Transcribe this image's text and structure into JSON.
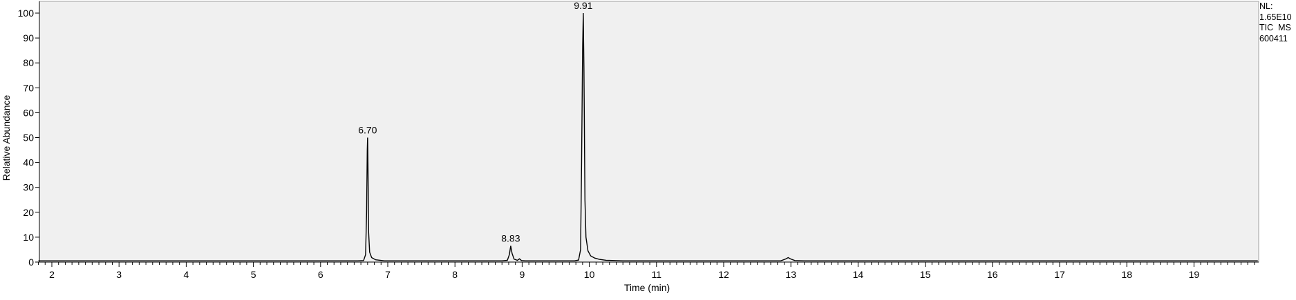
{
  "chart_data": {
    "type": "line",
    "title": "",
    "xlabel": "Time (min)",
    "ylabel": "Relative Abundance",
    "xlim": [
      1.8,
      19.95
    ],
    "ylim": [
      0,
      100
    ],
    "x_ticks": [
      2,
      3,
      4,
      5,
      6,
      7,
      8,
      9,
      10,
      11,
      12,
      13,
      14,
      15,
      16,
      17,
      18,
      19
    ],
    "y_ticks": [
      0,
      10,
      20,
      30,
      40,
      50,
      60,
      70,
      80,
      90,
      100
    ],
    "grid": false,
    "background_color": "#f0f0f0",
    "line_color": "#000000",
    "series": [
      {
        "x": [
          1.8,
          6.55,
          6.64,
          6.67,
          6.685,
          6.695,
          6.7,
          6.705,
          6.715,
          6.73,
          6.76,
          6.82,
          6.95,
          8.7,
          8.78,
          8.81,
          8.83,
          8.85,
          8.88,
          8.93,
          8.96,
          8.99,
          9.05,
          9.78,
          9.84,
          9.87,
          9.885,
          9.9,
          9.91,
          9.92,
          9.935,
          9.95,
          9.98,
          10.02,
          10.08,
          10.15,
          10.25,
          10.5,
          12.85,
          12.92,
          12.96,
          13.0,
          13.06,
          13.2,
          19.95
        ],
        "y": [
          0.5,
          0.5,
          0.6,
          3,
          20,
          45,
          50,
          40,
          12,
          4,
          1.8,
          0.9,
          0.5,
          0.5,
          0.7,
          3,
          6.5,
          3.5,
          1.2,
          0.7,
          1.3,
          0.6,
          0.5,
          0.5,
          0.8,
          5,
          40,
          85,
          100,
          78,
          25,
          10,
          4.5,
          2.5,
          1.6,
          1.1,
          0.7,
          0.5,
          0.5,
          1.2,
          1.8,
          1.2,
          0.6,
          0.5,
          0.5
        ]
      }
    ],
    "peak_labels": [
      {
        "x": 6.7,
        "y": 50,
        "text": "6.70"
      },
      {
        "x": 8.83,
        "y": 6.5,
        "text": "8.83"
      },
      {
        "x": 9.91,
        "y": 100,
        "text": "9.91"
      }
    ]
  },
  "info": {
    "nl_label": "NL:",
    "nl_value": "1.65E10",
    "trace": "TIC  MS",
    "sample": "600411"
  }
}
